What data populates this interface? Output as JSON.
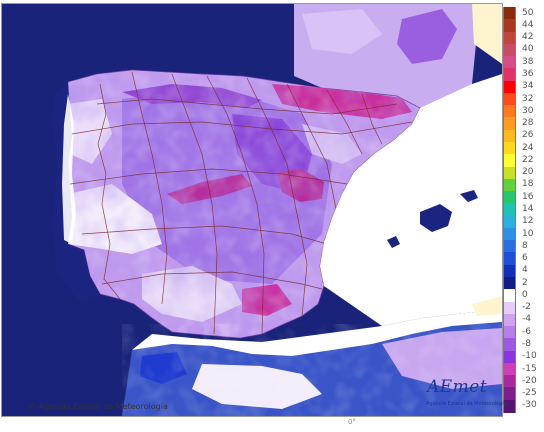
{
  "legend": {
    "labels": [
      "50",
      "44",
      "42",
      "40",
      "38",
      "36",
      "34",
      "32",
      "30",
      "28",
      "26",
      "24",
      "22",
      "20",
      "18",
      "16",
      "14",
      "12",
      "10",
      "8",
      "6",
      "4",
      "2",
      "0",
      "-2",
      "-4",
      "-6",
      "-8",
      "-10",
      "-15",
      "-20",
      "-25",
      "-30"
    ],
    "colors": [
      "#8a2b10",
      "#a8381f",
      "#c0463a",
      "#c84b66",
      "#d64d8a",
      "#e0336a",
      "#ff0000",
      "#ff4b1a",
      "#ff7a1f",
      "#ff9a22",
      "#ffba22",
      "#ffd91f",
      "#ffff33",
      "#c4e028",
      "#5fd13a",
      "#27c86d",
      "#20c3b3",
      "#29b2dd",
      "#2d8fe6",
      "#2a6fe0",
      "#1f4fd6",
      "#1530b8",
      "#101e86",
      "#ffffff",
      "#e6ccf6",
      "#cfa4ef",
      "#b57ee8",
      "#9d59e2",
      "#8a36da",
      "#d03fb6",
      "#a8299c",
      "#7e1d8c",
      "#561670"
    ]
  },
  "copyright": "© Agencia Estatal de Meteorología",
  "logo": {
    "name": "AEmet",
    "subtitle": "Agencia Estatal de Meteorología"
  },
  "bottom_tick": "0°"
}
